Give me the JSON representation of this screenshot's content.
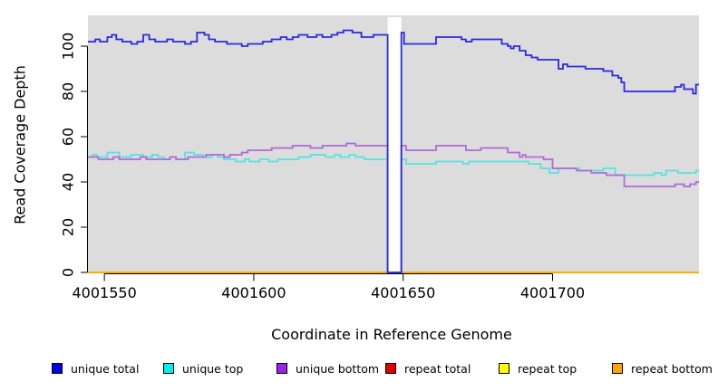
{
  "chart_data": {
    "type": "line",
    "subtype": "step",
    "title": "",
    "xlabel": "Coordinate in Reference Genome",
    "ylabel": "Read Coverage Depth",
    "xlim": [
      4001544.5,
      4001749
    ],
    "ylim": [
      0,
      113.6
    ],
    "x_ticks": [
      4001550,
      4001600,
      4001650,
      4001700
    ],
    "y_ticks": [
      0,
      20,
      40,
      60,
      80,
      100
    ],
    "grid": false,
    "plot_bg": "#dcdcdc",
    "page_bg": "#ffffff",
    "axis_color": "#000000",
    "legend_position": "bottom",
    "gap_region": {
      "x0": 4001644.8,
      "x1": 4001649.4,
      "color": "#ffffff",
      "note": "coverage gap, all unique series drop to 0"
    },
    "series": [
      {
        "name": "unique total",
        "color": "#0000ee",
        "line_color": "#2a2ae0",
        "points": [
          [
            4001544.5,
            102
          ],
          [
            4001547,
            103
          ],
          [
            4001548.5,
            102
          ],
          [
            4001551,
            104
          ],
          [
            4001552.5,
            105
          ],
          [
            4001554,
            103
          ],
          [
            4001556,
            102
          ],
          [
            4001559,
            101
          ],
          [
            4001561,
            102
          ],
          [
            4001563,
            105
          ],
          [
            4001565,
            103
          ],
          [
            4001567,
            102
          ],
          [
            4001571,
            103
          ],
          [
            4001573,
            102
          ],
          [
            4001577,
            101
          ],
          [
            4001579,
            102
          ],
          [
            4001581,
            106
          ],
          [
            4001583.5,
            105
          ],
          [
            4001585,
            103
          ],
          [
            4001587,
            102
          ],
          [
            4001591,
            101
          ],
          [
            4001596,
            100
          ],
          [
            4001598,
            101
          ],
          [
            4001603,
            102
          ],
          [
            4001606,
            103
          ],
          [
            4001609,
            104
          ],
          [
            4001611,
            103
          ],
          [
            4001613,
            104
          ],
          [
            4001615,
            105
          ],
          [
            4001618,
            104
          ],
          [
            4001621,
            105
          ],
          [
            4001623,
            104
          ],
          [
            4001626,
            105
          ],
          [
            4001628,
            106
          ],
          [
            4001630,
            107
          ],
          [
            4001633,
            106
          ],
          [
            4001636,
            104
          ],
          [
            4001640,
            105
          ],
          [
            4001644.8,
            0
          ],
          [
            4001649.4,
            106
          ],
          [
            4001650.3,
            101
          ],
          [
            4001661,
            104
          ],
          [
            4001669.5,
            103
          ],
          [
            4001671,
            102
          ],
          [
            4001673,
            103
          ],
          [
            4001683,
            101
          ],
          [
            4001685,
            100
          ],
          [
            4001686,
            99
          ],
          [
            4001687,
            100
          ],
          [
            4001689,
            98
          ],
          [
            4001691,
            96
          ],
          [
            4001693,
            95
          ],
          [
            4001695,
            94
          ],
          [
            4001702,
            90
          ],
          [
            4001703.5,
            92
          ],
          [
            4001705,
            91
          ],
          [
            4001711,
            90
          ],
          [
            4001717,
            89
          ],
          [
            4001720,
            87
          ],
          [
            4001722,
            86
          ],
          [
            4001723,
            84
          ],
          [
            4001724,
            80
          ],
          [
            4001741,
            82
          ],
          [
            4001743,
            83
          ],
          [
            4001744,
            81
          ],
          [
            4001747,
            79
          ],
          [
            4001748,
            83
          ]
        ]
      },
      {
        "name": "unique top",
        "color": "#00eeee",
        "line_color": "#55e2de",
        "points": [
          [
            4001544.5,
            51
          ],
          [
            4001546,
            52
          ],
          [
            4001547.5,
            51
          ],
          [
            4001551,
            53
          ],
          [
            4001555,
            51
          ],
          [
            4001559,
            52
          ],
          [
            4001563,
            51
          ],
          [
            4001566,
            52
          ],
          [
            4001568,
            51
          ],
          [
            4001570,
            50
          ],
          [
            4001572,
            51
          ],
          [
            4001574,
            50
          ],
          [
            4001577,
            53
          ],
          [
            4001580,
            52
          ],
          [
            4001583,
            51
          ],
          [
            4001586,
            52
          ],
          [
            4001588,
            51
          ],
          [
            4001590,
            50
          ],
          [
            4001594,
            49
          ],
          [
            4001597,
            50
          ],
          [
            4001598.5,
            49
          ],
          [
            4001602,
            50
          ],
          [
            4001605,
            49
          ],
          [
            4001608,
            50
          ],
          [
            4001615,
            51
          ],
          [
            4001619,
            52
          ],
          [
            4001624,
            51
          ],
          [
            4001627,
            52
          ],
          [
            4001629,
            51
          ],
          [
            4001632,
            52
          ],
          [
            4001634,
            51
          ],
          [
            4001637,
            50
          ],
          [
            4001644.8,
            0
          ],
          [
            4001649.4,
            50
          ],
          [
            4001651,
            48
          ],
          [
            4001661,
            49
          ],
          [
            4001670,
            48
          ],
          [
            4001672,
            49
          ],
          [
            4001692,
            48
          ],
          [
            4001696,
            46
          ],
          [
            4001699,
            44
          ],
          [
            4001702,
            46
          ],
          [
            4001709,
            45
          ],
          [
            4001717,
            46
          ],
          [
            4001721,
            43
          ],
          [
            4001734,
            44
          ],
          [
            4001736.5,
            43
          ],
          [
            4001738,
            45
          ],
          [
            4001742,
            44
          ],
          [
            4001748,
            45
          ]
        ]
      },
      {
        "name": "unique bottom",
        "color": "#a020f0",
        "line_color": "#ae6bd6",
        "points": [
          [
            4001544.5,
            51
          ],
          [
            4001548,
            50
          ],
          [
            4001553,
            51
          ],
          [
            4001555,
            50
          ],
          [
            4001562,
            51
          ],
          [
            4001564,
            50
          ],
          [
            4001572,
            51
          ],
          [
            4001574,
            50
          ],
          [
            4001578,
            51
          ],
          [
            4001584,
            52
          ],
          [
            4001590,
            51
          ],
          [
            4001592,
            52
          ],
          [
            4001596,
            53
          ],
          [
            4001598,
            54
          ],
          [
            4001606,
            55
          ],
          [
            4001613,
            56
          ],
          [
            4001619,
            55
          ],
          [
            4001623,
            56
          ],
          [
            4001631,
            57
          ],
          [
            4001634,
            56
          ],
          [
            4001644.8,
            0
          ],
          [
            4001649.4,
            56
          ],
          [
            4001651,
            54
          ],
          [
            4001661,
            56
          ],
          [
            4001671,
            54
          ],
          [
            4001676,
            55
          ],
          [
            4001685,
            53
          ],
          [
            4001689,
            51
          ],
          [
            4001690,
            52
          ],
          [
            4001691,
            51
          ],
          [
            4001697,
            50
          ],
          [
            4001700,
            46
          ],
          [
            4001708,
            45
          ],
          [
            4001713,
            44
          ],
          [
            4001718,
            43
          ],
          [
            4001724,
            38
          ],
          [
            4001741,
            39
          ],
          [
            4001744,
            38
          ],
          [
            4001746,
            39
          ],
          [
            4001748,
            40
          ]
        ]
      },
      {
        "name": "repeat total",
        "color": "#e00000",
        "line_color": "#e00000",
        "points": [
          [
            4001544.5,
            0
          ]
        ]
      },
      {
        "name": "repeat top",
        "color": "#ffff00",
        "line_color": "#ffff00",
        "points": [
          [
            4001544.5,
            0
          ]
        ]
      },
      {
        "name": "repeat bottom",
        "color": "#ffa500",
        "line_color": "#ffa500",
        "points": [
          [
            4001544.5,
            0
          ]
        ]
      }
    ]
  }
}
